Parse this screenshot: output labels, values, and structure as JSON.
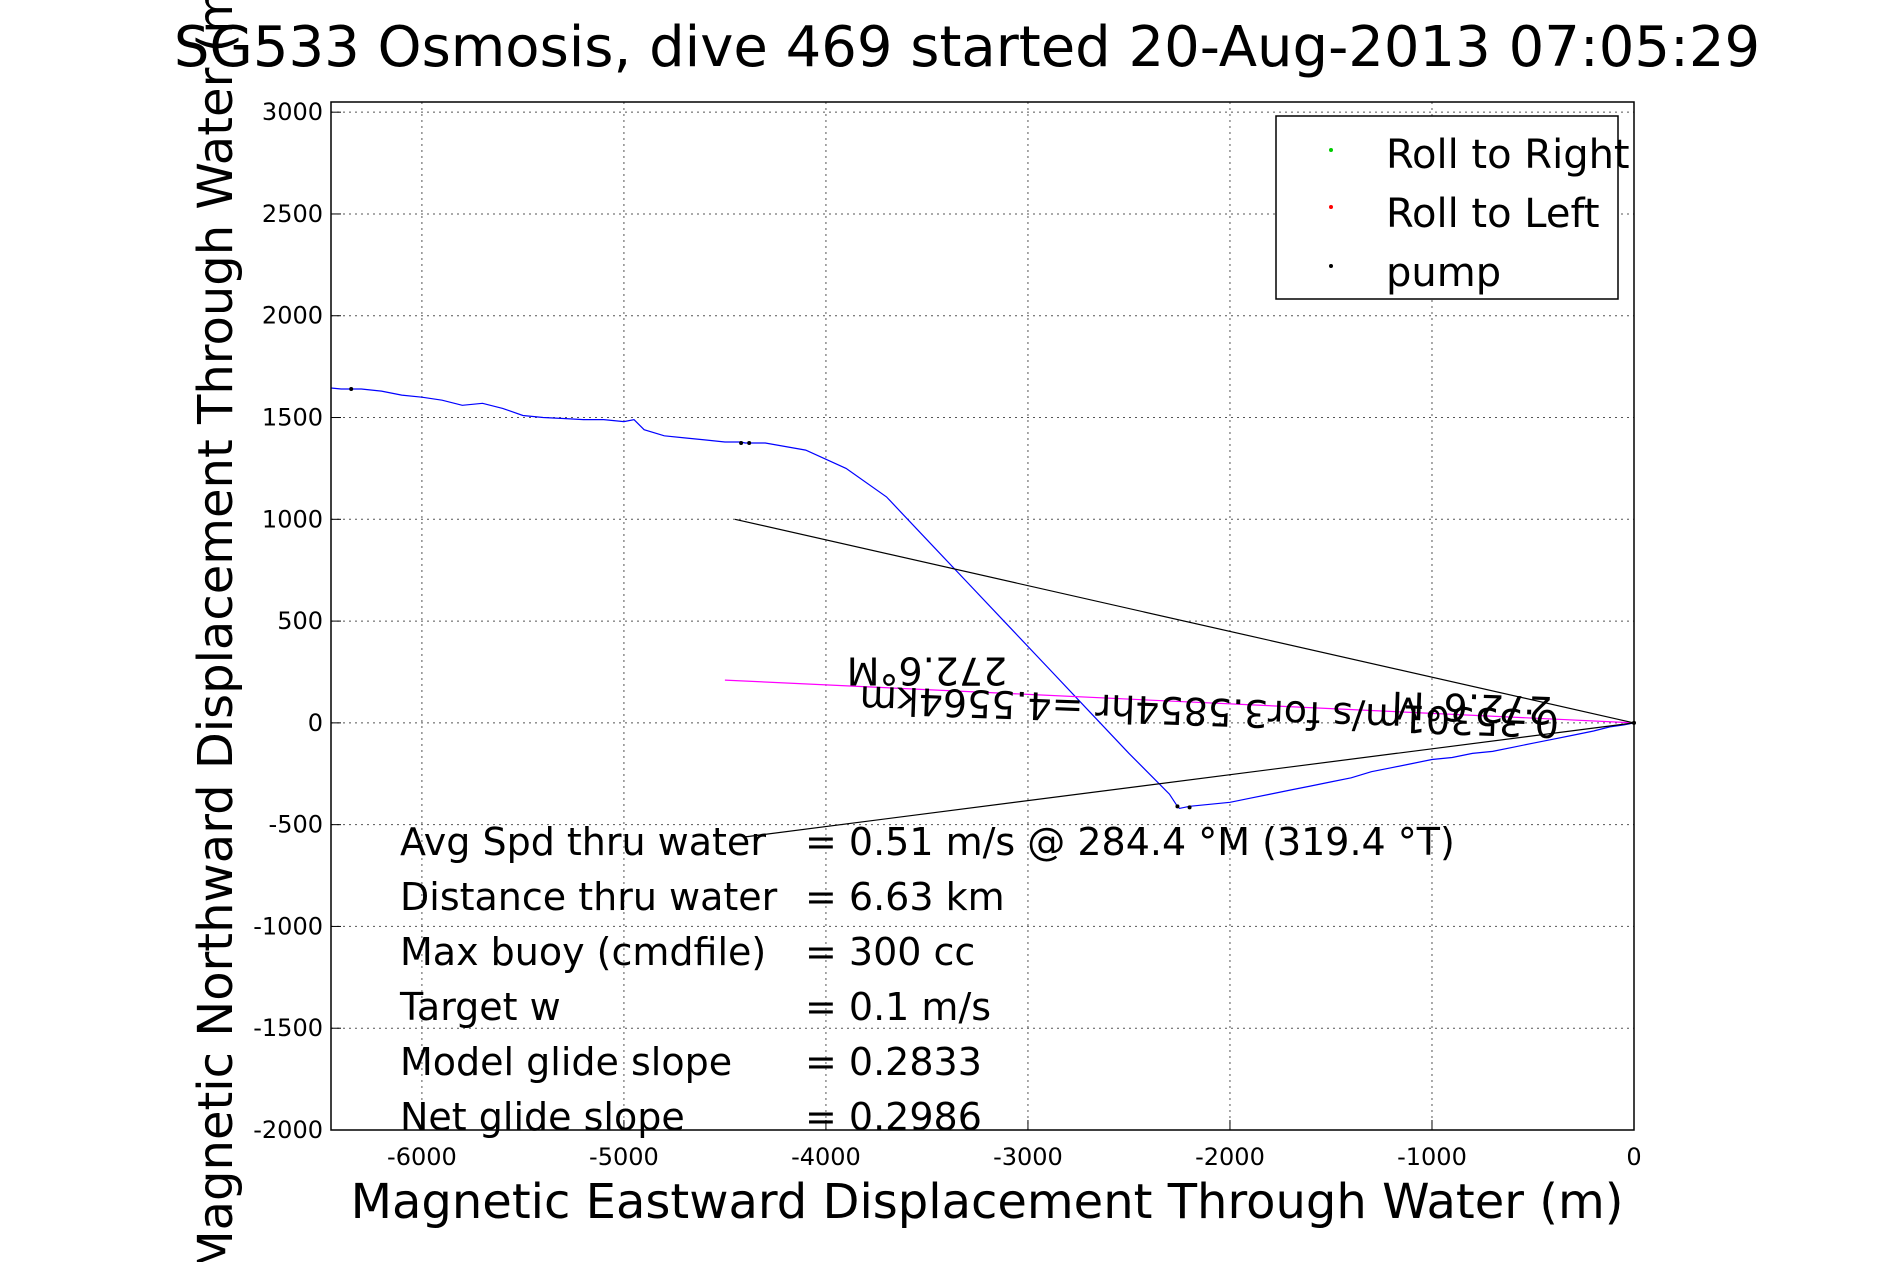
{
  "chart_data": {
    "type": "line",
    "title": "SG533 Osmosis, dive 469 started 20-Aug-2013 07:05:29",
    "xlabel": "Magnetic Eastward Displacement Through Water (m)",
    "ylabel": "Magnetic Northward Displacement Through Water (m)",
    "xlim": [
      -6450,
      0
    ],
    "ylim": [
      -2000,
      3050
    ],
    "x_ticks": [
      "-6000",
      "-5000",
      "-4000",
      "-3000",
      "-2000",
      "-1000",
      "0"
    ],
    "y_ticks": [
      "3000",
      "2500",
      "2000",
      "1500",
      "1000",
      "500",
      "0",
      "-500",
      "-1000",
      "-1500",
      "-2000"
    ],
    "grid": true,
    "legend_position": "top-right",
    "legend": [
      {
        "name": "Roll to Right",
        "color": "#00cc00"
      },
      {
        "name": "Roll to Left",
        "color": "#ff0000"
      },
      {
        "name": "pump",
        "color": "#000000"
      }
    ],
    "series": [
      {
        "color": "#0000ff",
        "x": [
          0,
          -50,
          -120,
          -200,
          -300,
          -400,
          -500,
          -600,
          -700,
          -800,
          -900,
          -1000,
          -1100,
          -1200,
          -1300,
          -1400,
          -1500,
          -1600,
          -1700,
          -1800,
          -1900,
          -2000,
          -2100,
          -2200,
          -2250,
          -2260,
          -2300,
          -2500,
          -2700,
          -2900,
          -3100,
          -3300,
          -3500,
          -3700,
          -3900,
          -4100,
          -4300,
          -4400,
          -4420,
          -4500,
          -4600,
          -4700,
          -4800,
          -4900,
          -4950,
          -5000,
          -5100,
          -5200,
          -5300,
          -5400,
          -5500,
          -5600,
          -5700,
          -5800,
          -5900,
          -6000,
          -6100,
          -6200,
          -6300,
          -6400,
          -6450
        ],
        "y": [
          0,
          -10,
          -20,
          -40,
          -60,
          -80,
          -100,
          -120,
          -140,
          -150,
          -170,
          -180,
          -200,
          -220,
          -240,
          -270,
          -290,
          -310,
          -330,
          -350,
          -370,
          -390,
          -400,
          -410,
          -420,
          -410,
          -350,
          -150,
          60,
          270,
          480,
          690,
          900,
          1110,
          1250,
          1340,
          1375,
          1375,
          1380,
          1380,
          1390,
          1400,
          1410,
          1440,
          1490,
          1480,
          1490,
          1490,
          1495,
          1500,
          1510,
          1545,
          1570,
          1560,
          1585,
          1600,
          1610,
          1630,
          1640,
          1640,
          1645
        ]
      },
      {
        "color": "#ff00ff",
        "x": [
          0,
          -1500,
          -3000,
          -4500
        ],
        "y": [
          0,
          70,
          140,
          210
        ]
      },
      {
        "color": "#000000",
        "x": [
          0,
          -4450
        ],
        "y": [
          0,
          1000
        ]
      },
      {
        "color": "#000000",
        "x": [
          0,
          -4400
        ],
        "y": [
          0,
          -560
        ]
      }
    ],
    "pump_points": {
      "x": [
        -6350,
        -4420,
        -4380,
        -2260,
        -2200,
        0
      ],
      "y": [
        1640,
        1375,
        1375,
        -410,
        -415,
        0
      ]
    },
    "annotations": [
      {
        "text": "272.6°M",
        "x": -3500,
        "y": 320,
        "rotation": 180
      },
      {
        "text": "0.35301m/s for3.5854hr =4.5564km",
        "x": -2100,
        "y": 120,
        "rotation": 182
      },
      {
        "text": "272.6°M",
        "x": -800,
        "y": 140,
        "rotation": 182
      }
    ]
  },
  "stats": [
    {
      "label": "Avg Spd thru water",
      "value": "=  0.51 m/s @ 284.4 °M (319.4 °T)"
    },
    {
      "label": "Distance thru water",
      "value": "=  6.63 km"
    },
    {
      "label": "Max buoy (cmdfile)",
      "value": "= 300 cc"
    },
    {
      "label": "Target w",
      "value": "= 0.1 m/s"
    },
    {
      "label": "Model glide slope",
      "value": "= 0.2833"
    },
    {
      "label": "Net glide slope",
      "value": "= 0.2986"
    }
  ]
}
